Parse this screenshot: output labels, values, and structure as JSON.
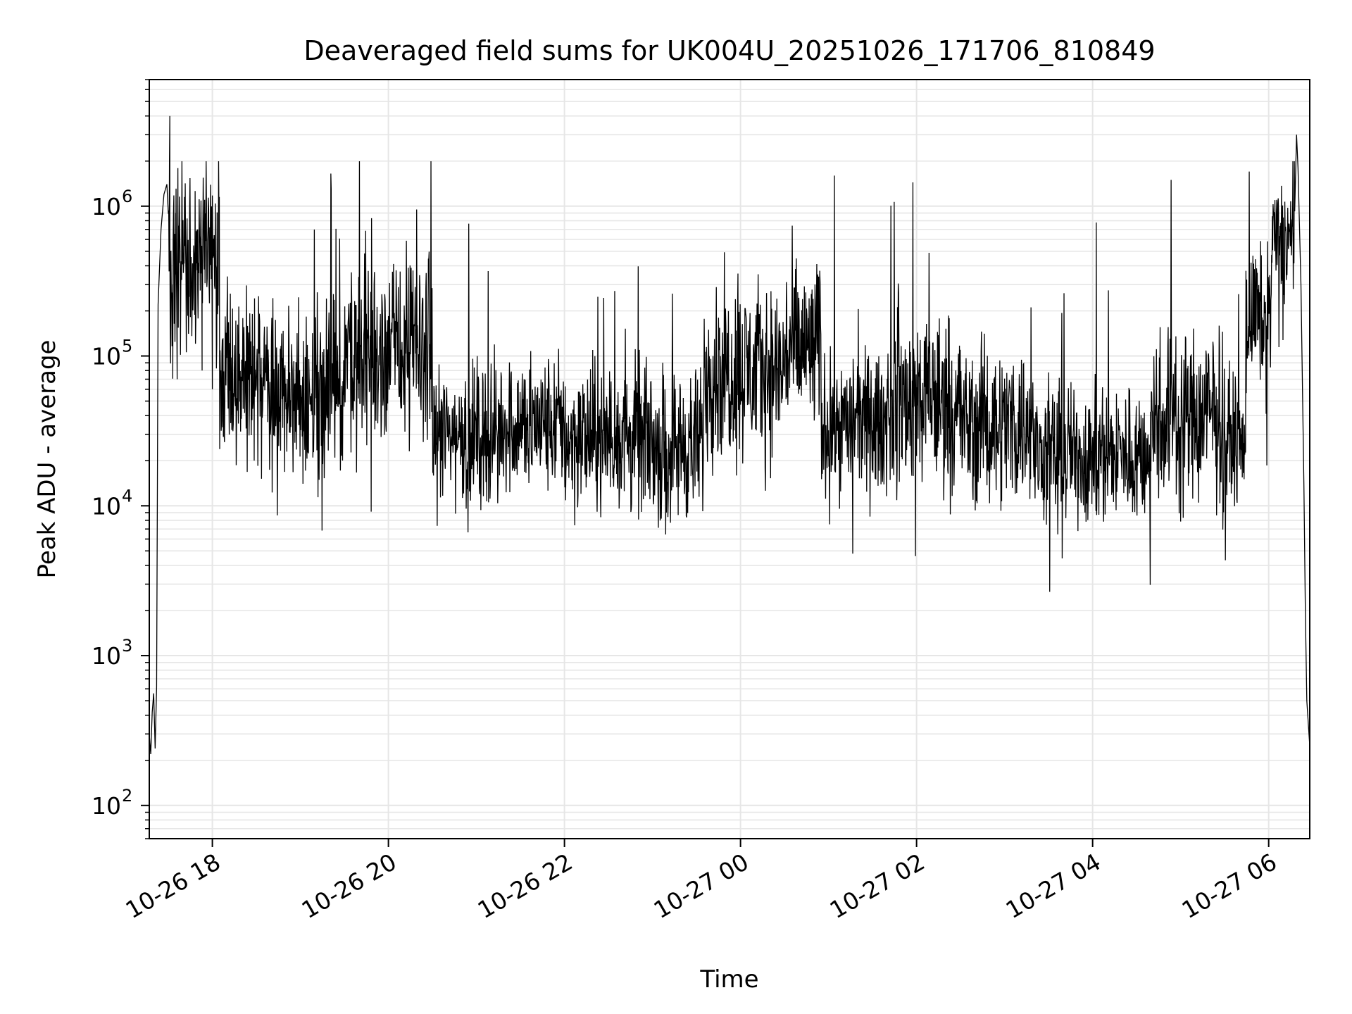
{
  "chart_data": {
    "type": "line",
    "title": "Deaveraged field sums for UK004U_20251026_171706_810849",
    "xlabel": "Time",
    "ylabel": "Peak ADU - average",
    "x_range": [
      "2025-10-26 17:17",
      "2025-10-27 06:28"
    ],
    "y_scale": "log",
    "ylim": [
      60,
      7000000
    ],
    "x_ticks": [
      {
        "label": "10-26 18",
        "time": "2025-10-26 18:00"
      },
      {
        "label": "10-26 20",
        "time": "2025-10-26 20:00"
      },
      {
        "label": "10-26 22",
        "time": "2025-10-26 22:00"
      },
      {
        "label": "10-27 00",
        "time": "2025-10-27 00:00"
      },
      {
        "label": "10-27 02",
        "time": "2025-10-27 02:00"
      },
      {
        "label": "10-27 04",
        "time": "2025-10-27 04:00"
      },
      {
        "label": "10-27 06",
        "time": "2025-10-27 06:00"
      }
    ],
    "y_ticks": [
      {
        "base": "10",
        "exp": "2",
        "value": 100
      },
      {
        "base": "10",
        "exp": "3",
        "value": 1000
      },
      {
        "base": "10",
        "exp": "4",
        "value": 10000
      },
      {
        "base": "10",
        "exp": "5",
        "value": 100000
      },
      {
        "base": "10",
        "exp": "6",
        "value": 1000000
      }
    ],
    "grid": true,
    "line_color": "#000000",
    "grid_color": "#e6e6e6",
    "series": [
      {
        "points": [
          [
            "2025-10-26 17:17",
            300
          ],
          [
            "2025-10-26 17:18",
            220
          ],
          [
            "2025-10-26 17:19",
            420
          ],
          [
            "2025-10-26 17:20",
            560
          ],
          [
            "2025-10-26 17:21",
            240
          ],
          [
            "2025-10-26 17:22",
            620
          ],
          [
            "2025-10-26 17:23",
            220000
          ],
          [
            "2025-10-26 17:25",
            700000
          ],
          [
            "2025-10-26 17:27",
            1200000
          ],
          [
            "2025-10-26 17:29",
            1400000
          ],
          [
            "2025-10-26 17:31",
            4000000
          ],
          [
            "2025-10-26 17:33",
            300000
          ],
          [
            "2025-10-26 17:35",
            900000
          ],
          [
            "2025-10-26 17:36",
            70000
          ],
          [
            "2025-10-26 17:40",
            600000
          ],
          [
            "2025-10-26 17:45",
            450000
          ],
          [
            "2025-10-26 17:50",
            700000
          ],
          [
            "2025-10-26 17:53",
            80000
          ],
          [
            "2025-10-26 17:56",
            1000000
          ],
          [
            "2025-10-26 18:00",
            60000
          ]
        ],
        "segments": [
          {
            "start": "2025-10-26 17:30",
            "end": "2025-10-26 18:05",
            "median": 400000,
            "spread": 0.5
          },
          {
            "start": "2025-10-26 18:05",
            "end": "2025-10-26 18:50",
            "median": 65000,
            "spread": 0.45
          },
          {
            "start": "2025-10-26 18:50",
            "end": "2025-10-26 19:30",
            "median": 60000,
            "spread": 0.45
          },
          {
            "start": "2025-10-26 19:30",
            "end": "2025-10-26 20:30",
            "median": 110000,
            "spread": 0.5
          },
          {
            "start": "2025-10-26 20:30",
            "end": "2025-10-26 21:15",
            "median": 30000,
            "spread": 0.35
          },
          {
            "start": "2025-10-26 21:15",
            "end": "2025-10-26 22:00",
            "median": 35000,
            "spread": 0.35
          },
          {
            "start": "2025-10-26 22:00",
            "end": "2025-10-26 23:00",
            "median": 28000,
            "spread": 0.38
          },
          {
            "start": "2025-10-26 23:00",
            "end": "2025-10-26 23:35",
            "median": 25000,
            "spread": 0.38
          },
          {
            "start": "2025-10-26 23:35",
            "end": "2025-10-27 00:30",
            "median": 80000,
            "spread": 0.45
          },
          {
            "start": "2025-10-27 00:30",
            "end": "2025-10-27 00:55",
            "median": 110000,
            "spread": 0.45
          },
          {
            "start": "2025-10-27 00:55",
            "end": "2025-10-27 01:40",
            "median": 35000,
            "spread": 0.35
          },
          {
            "start": "2025-10-27 01:40",
            "end": "2025-10-27 02:30",
            "median": 50000,
            "spread": 0.45
          },
          {
            "start": "2025-10-27 02:30",
            "end": "2025-10-27 03:20",
            "median": 35000,
            "spread": 0.4
          },
          {
            "start": "2025-10-27 03:20",
            "end": "2025-10-27 04:40",
            "median": 22000,
            "spread": 0.35
          },
          {
            "start": "2025-10-27 04:40",
            "end": "2025-10-27 05:30",
            "median": 40000,
            "spread": 0.45
          },
          {
            "start": "2025-10-27 05:30",
            "end": "2025-10-27 05:45",
            "median": 28000,
            "spread": 0.3
          },
          {
            "start": "2025-10-27 05:45",
            "end": "2025-10-27 06:02",
            "median": 180000,
            "spread": 0.35
          },
          {
            "start": "2025-10-27 06:02",
            "end": "2025-10-27 06:18",
            "median": 600000,
            "spread": 0.3
          }
        ],
        "tail": [
          [
            "2025-10-27 06:19",
            3000000
          ],
          [
            "2025-10-27 06:20",
            1800000
          ],
          [
            "2025-10-27 06:22",
            300000
          ],
          [
            "2025-10-27 06:24",
            14000
          ],
          [
            "2025-10-27 06:25",
            2000
          ],
          [
            "2025-10-27 06:26",
            500
          ],
          [
            "2025-10-27 06:28",
            250
          ]
        ]
      }
    ]
  }
}
